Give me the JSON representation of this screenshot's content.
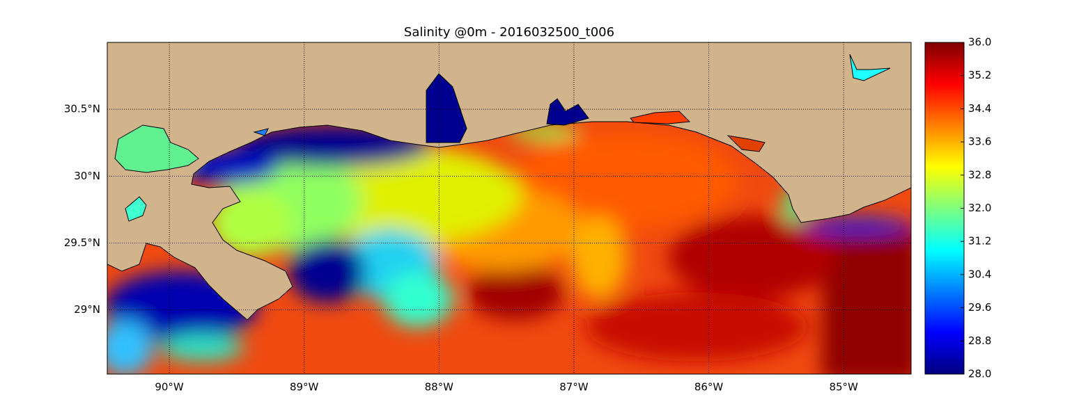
{
  "chart_data": {
    "type": "map",
    "title": "Salinity @0m - 2016032500_t006",
    "xlim": [
      -90.46,
      -84.5
    ],
    "ylim": [
      28.52,
      31.0
    ],
    "xticks": [
      {
        "value": -90,
        "label": "90°W"
      },
      {
        "value": -89,
        "label": "89°W"
      },
      {
        "value": -88,
        "label": "88°W"
      },
      {
        "value": -87,
        "label": "87°W"
      },
      {
        "value": -86,
        "label": "86°W"
      },
      {
        "value": -85,
        "label": "85°W"
      }
    ],
    "yticks": [
      {
        "value": 29,
        "label": "29°N"
      },
      {
        "value": 29.5,
        "label": "29.5°N"
      },
      {
        "value": 30,
        "label": "30°N"
      },
      {
        "value": 30.5,
        "label": "30.5°N"
      }
    ],
    "grid": true,
    "land_color": "#d2b48c",
    "colormap": "jet",
    "clim": [
      28,
      36
    ],
    "cticks": [
      {
        "value": 28,
        "label": "28.0"
      },
      {
        "value": 28.8,
        "label": "28.8"
      },
      {
        "value": 29.6,
        "label": "29.6"
      },
      {
        "value": 30.4,
        "label": "30.4"
      },
      {
        "value": 31.2,
        "label": "31.2"
      },
      {
        "value": 32,
        "label": "32.0"
      },
      {
        "value": 32.8,
        "label": "32.8"
      },
      {
        "value": 33.6,
        "label": "33.6"
      },
      {
        "value": 34.4,
        "label": "34.4"
      },
      {
        "value": 35.2,
        "label": "35.2"
      },
      {
        "value": 36,
        "label": "36.0"
      }
    ]
  }
}
